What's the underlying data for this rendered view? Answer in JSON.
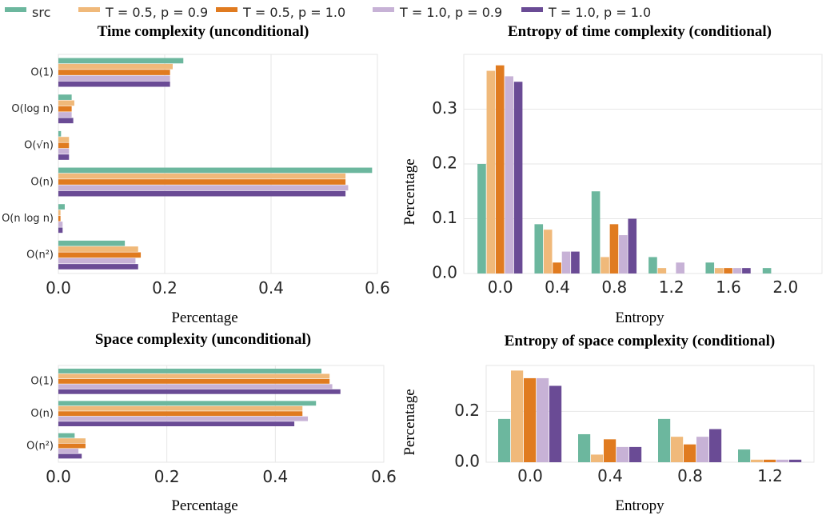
{
  "legend": [
    {
      "name": "src",
      "color": "#6cb79e"
    },
    {
      "name": "T = 0.5, p = 0.9",
      "color": "#f0b97a"
    },
    {
      "name": "T = 0.5, p = 1.0",
      "color": "#e07b20"
    },
    {
      "name": "T = 1.0, p = 0.9",
      "color": "#c7b2d6"
    },
    {
      "name": "T = 1.0, p = 1.0",
      "color": "#6a4b95"
    }
  ],
  "chart_data": [
    {
      "type": "bar",
      "orientation": "horizontal",
      "title": "Time complexity (unconditional)",
      "xlabel": "Percentage",
      "ylabel": "",
      "xlim": [
        0,
        0.6
      ],
      "xticks": [
        "0.0",
        "0.2",
        "0.4",
        "0.6"
      ],
      "categories": [
        "O(1)",
        "O(log n)",
        "O(√n)",
        "O(n)",
        "O(n log n)",
        "O(n²)"
      ],
      "series": [
        {
          "name": "src",
          "values": [
            0.235,
            0.025,
            0.005,
            0.59,
            0.012,
            0.125
          ]
        },
        {
          "name": "T = 0.5, p = 0.9",
          "values": [
            0.215,
            0.03,
            0.02,
            0.54,
            0.004,
            0.15
          ]
        },
        {
          "name": "T = 0.5, p = 1.0",
          "values": [
            0.21,
            0.025,
            0.02,
            0.54,
            0.004,
            0.155
          ]
        },
        {
          "name": "T = 1.0, p = 0.9",
          "values": [
            0.21,
            0.025,
            0.02,
            0.545,
            0.008,
            0.145
          ]
        },
        {
          "name": "T = 1.0, p = 1.0",
          "values": [
            0.21,
            0.028,
            0.02,
            0.54,
            0.008,
            0.15
          ]
        }
      ]
    },
    {
      "type": "bar",
      "title": "Entropy of time complexity (conditional)",
      "xlabel": "Entropy",
      "ylabel": "Percentage",
      "ylim": [
        0,
        0.4
      ],
      "yticks": [
        "0.0",
        "0.1",
        "0.2",
        "0.3"
      ],
      "categories": [
        "0.0",
        "0.4",
        "0.8",
        "1.2",
        "1.6",
        "2.0"
      ],
      "series": [
        {
          "name": "src",
          "values": [
            0.2,
            0.09,
            0.15,
            0.03,
            0.02,
            0.01
          ]
        },
        {
          "name": "T = 0.5, p = 0.9",
          "values": [
            0.37,
            0.08,
            0.03,
            0.01,
            0.01,
            0
          ]
        },
        {
          "name": "T = 0.5, p = 1.0",
          "values": [
            0.38,
            0.02,
            0.09,
            0,
            0.01,
            0
          ]
        },
        {
          "name": "T = 1.0, p = 0.9",
          "values": [
            0.36,
            0.04,
            0.07,
            0.02,
            0.01,
            0
          ]
        },
        {
          "name": "T = 1.0, p = 1.0",
          "values": [
            0.35,
            0.04,
            0.1,
            0,
            0.01,
            0
          ]
        }
      ]
    },
    {
      "type": "bar",
      "orientation": "horizontal",
      "title": "Space complexity (unconditional)",
      "xlabel": "Percentage",
      "ylabel": "",
      "xlim": [
        0,
        0.6
      ],
      "xticks": [
        "0.0",
        "0.2",
        "0.4",
        "0.6"
      ],
      "categories": [
        "O(1)",
        "O(n)",
        "O(n²)"
      ],
      "series": [
        {
          "name": "src",
          "values": [
            0.485,
            0.475,
            0.03
          ]
        },
        {
          "name": "T = 0.5, p = 0.9",
          "values": [
            0.5,
            0.45,
            0.05
          ]
        },
        {
          "name": "T = 0.5, p = 1.0",
          "values": [
            0.5,
            0.45,
            0.05
          ]
        },
        {
          "name": "T = 1.0, p = 0.9",
          "values": [
            0.505,
            0.46,
            0.037
          ]
        },
        {
          "name": "T = 1.0, p = 1.0",
          "values": [
            0.52,
            0.435,
            0.043
          ]
        }
      ]
    },
    {
      "type": "bar",
      "title": "Entropy of space complexity (conditional)",
      "xlabel": "Entropy",
      "ylabel": "Percentage",
      "ylim": [
        0,
        0.38
      ],
      "yticks": [
        "0.0",
        "0.2"
      ],
      "categories": [
        "0.0",
        "0.4",
        "0.8",
        "1.2"
      ],
      "series": [
        {
          "name": "src",
          "values": [
            0.17,
            0.11,
            0.17,
            0.05
          ]
        },
        {
          "name": "T = 0.5, p = 0.9",
          "values": [
            0.36,
            0.03,
            0.1,
            0.01
          ]
        },
        {
          "name": "T = 0.5, p = 1.0",
          "values": [
            0.33,
            0.09,
            0.07,
            0.01
          ]
        },
        {
          "name": "T = 1.0, p = 0.9",
          "values": [
            0.33,
            0.06,
            0.1,
            0.01
          ]
        },
        {
          "name": "T = 1.0, p = 1.0",
          "values": [
            0.3,
            0.06,
            0.13,
            0.01
          ]
        }
      ]
    }
  ]
}
